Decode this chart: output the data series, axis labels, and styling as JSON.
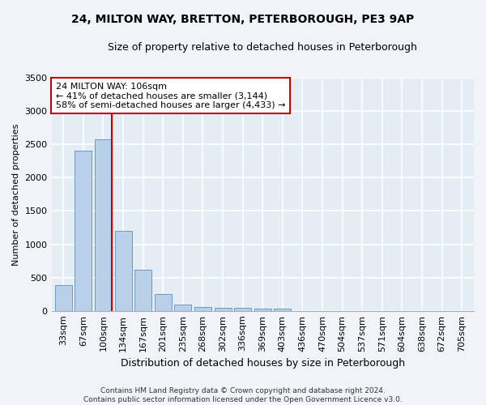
{
  "title1": "24, MILTON WAY, BRETTON, PETERBOROUGH, PE3 9AP",
  "title2": "Size of property relative to detached houses in Peterborough",
  "xlabel": "Distribution of detached houses by size in Peterborough",
  "ylabel": "Number of detached properties",
  "categories": [
    "33sqm",
    "67sqm",
    "100sqm",
    "134sqm",
    "167sqm",
    "201sqm",
    "235sqm",
    "268sqm",
    "302sqm",
    "336sqm",
    "369sqm",
    "403sqm",
    "436sqm",
    "470sqm",
    "504sqm",
    "537sqm",
    "571sqm",
    "604sqm",
    "638sqm",
    "672sqm",
    "705sqm"
  ],
  "values": [
    390,
    2400,
    2580,
    1200,
    620,
    250,
    100,
    60,
    50,
    45,
    40,
    30,
    0,
    0,
    0,
    0,
    0,
    0,
    0,
    0,
    0
  ],
  "bar_color": "#b8d0e8",
  "bar_edge_color": "#6090b8",
  "vline_color": "#cc0000",
  "annotation_text": "24 MILTON WAY: 106sqm\n← 41% of detached houses are smaller (3,144)\n58% of semi-detached houses are larger (4,433) →",
  "annotation_box_color": "#ffffff",
  "annotation_box_edge": "#cc0000",
  "ylim": [
    0,
    3500
  ],
  "yticks": [
    0,
    500,
    1000,
    1500,
    2000,
    2500,
    3000,
    3500
  ],
  "footer": "Contains HM Land Registry data © Crown copyright and database right 2024.\nContains public sector information licensed under the Open Government Licence v3.0.",
  "bg_color": "#f0f4f8",
  "plot_bg_color": "#e4ecf4",
  "grid_color": "#ffffff",
  "title1_fontsize": 10,
  "title2_fontsize": 9,
  "xlabel_fontsize": 9,
  "ylabel_fontsize": 8,
  "tick_fontsize": 8,
  "annot_fontsize": 8,
  "footer_fontsize": 6.5
}
